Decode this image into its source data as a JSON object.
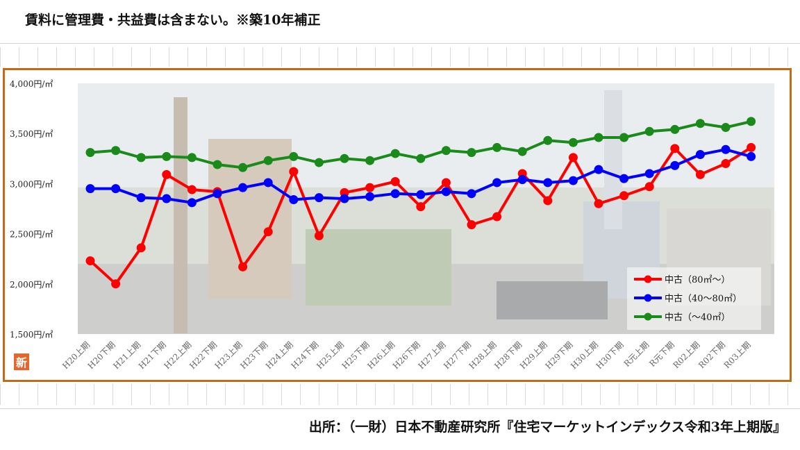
{
  "header": {
    "note": "賃料に管理費・共益費は含まない。※築10年補正"
  },
  "footer": {
    "source": "出所：（一財）日本不動産研究所『住宅マーケットインデックス令和3年上期版』"
  },
  "badge": {
    "label": "新"
  },
  "colors": {
    "frame": "#c46a14",
    "red": "#ff0000",
    "blue": "#0000ff",
    "green": "#1a8a1a"
  },
  "chart_data": {
    "type": "line",
    "categories": [
      "H20上期",
      "H20下期",
      "H21上期",
      "H21下期",
      "H22上期",
      "H22下期",
      "H23上期",
      "H23下期",
      "H24上期",
      "H24下期",
      "H25上期",
      "H25下期",
      "H26上期",
      "H26下期",
      "H27上期",
      "H27下期",
      "H28上期",
      "H28下期",
      "H29上期",
      "H29下期",
      "H30上期",
      "H30下期",
      "R元上期",
      "R元下期",
      "R02上期",
      "R02下期",
      "R03上期"
    ],
    "ylim": [
      1500,
      4000
    ],
    "yticks": [
      4000,
      3500,
      3000,
      2500,
      2000,
      1500
    ],
    "ytick_labels": [
      "4,000円/㎡",
      "3,500円/㎡",
      "3,000円/㎡",
      "2,500円/㎡",
      "2,000円/㎡",
      "1,500円/㎡"
    ],
    "legend_position": "bottom-right",
    "series": [
      {
        "name": "中古（80㎡～）",
        "color": "#ff0000",
        "values": [
          2230,
          2000,
          2360,
          3090,
          2940,
          2920,
          2170,
          2520,
          3120,
          2480,
          2910,
          2960,
          3020,
          2770,
          3010,
          2590,
          2670,
          3100,
          2830,
          3260,
          2800,
          2880,
          2970,
          3350,
          3090,
          3200,
          3360
        ]
      },
      {
        "name": "中古（40～80㎡）",
        "color": "#0000ff",
        "values": [
          2950,
          2950,
          2860,
          2850,
          2810,
          2900,
          2960,
          3010,
          2840,
          2860,
          2850,
          2870,
          2900,
          2890,
          2920,
          2900,
          3010,
          3040,
          3010,
          3030,
          3140,
          3050,
          3100,
          3180,
          3290,
          3340,
          3270
        ]
      },
      {
        "name": "中古（～40㎡）",
        "color": "#1a8a1a",
        "values": [
          3310,
          3330,
          3260,
          3270,
          3260,
          3190,
          3160,
          3230,
          3270,
          3210,
          3250,
          3230,
          3300,
          3250,
          3330,
          3310,
          3360,
          3320,
          3430,
          3410,
          3460,
          3460,
          3520,
          3540,
          3600,
          3560,
          3620
        ]
      }
    ]
  }
}
